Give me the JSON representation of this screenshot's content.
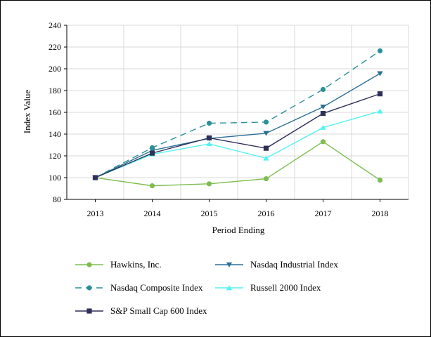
{
  "chart_data": {
    "type": "line",
    "title": "",
    "xlabel": "Period Ending",
    "ylabel": "Index Value",
    "x": [
      "2013",
      "2014",
      "2015",
      "2016",
      "2017",
      "2018"
    ],
    "ylim": [
      80,
      240
    ],
    "yticks": [
      80,
      100,
      120,
      140,
      160,
      180,
      200,
      220,
      240
    ],
    "grid": true,
    "legend_position": "bottom",
    "series": [
      {
        "name": "Hawkins, Inc.",
        "color": "#7dbd4f",
        "marker": "circle",
        "dashed": false,
        "values": [
          100,
          92.5,
          94.3,
          99.0,
          133.0,
          97.7
        ]
      },
      {
        "name": "Nasdaq Industrial Index",
        "color": "#2b6f96",
        "marker": "triangle-down",
        "dashed": false,
        "values": [
          100,
          125.0,
          136.0,
          140.8,
          165.0,
          195.7
        ]
      },
      {
        "name": "Nasdaq Composite Index",
        "color": "#2a9297",
        "marker": "circle",
        "dashed": true,
        "values": [
          100,
          127.5,
          150.0,
          151.0,
          181.0,
          216.5
        ]
      },
      {
        "name": "Russell 2000 Index",
        "color": "#56f2f2",
        "marker": "triangle-up",
        "dashed": false,
        "values": [
          100,
          121.5,
          131.0,
          117.8,
          146.0,
          161.0
        ]
      },
      {
        "name": "S&P Small Cap 600 Index",
        "color": "#2f2f5a",
        "marker": "square",
        "dashed": false,
        "values": [
          100,
          122.5,
          136.5,
          127.0,
          159.0,
          177.0
        ]
      }
    ]
  }
}
